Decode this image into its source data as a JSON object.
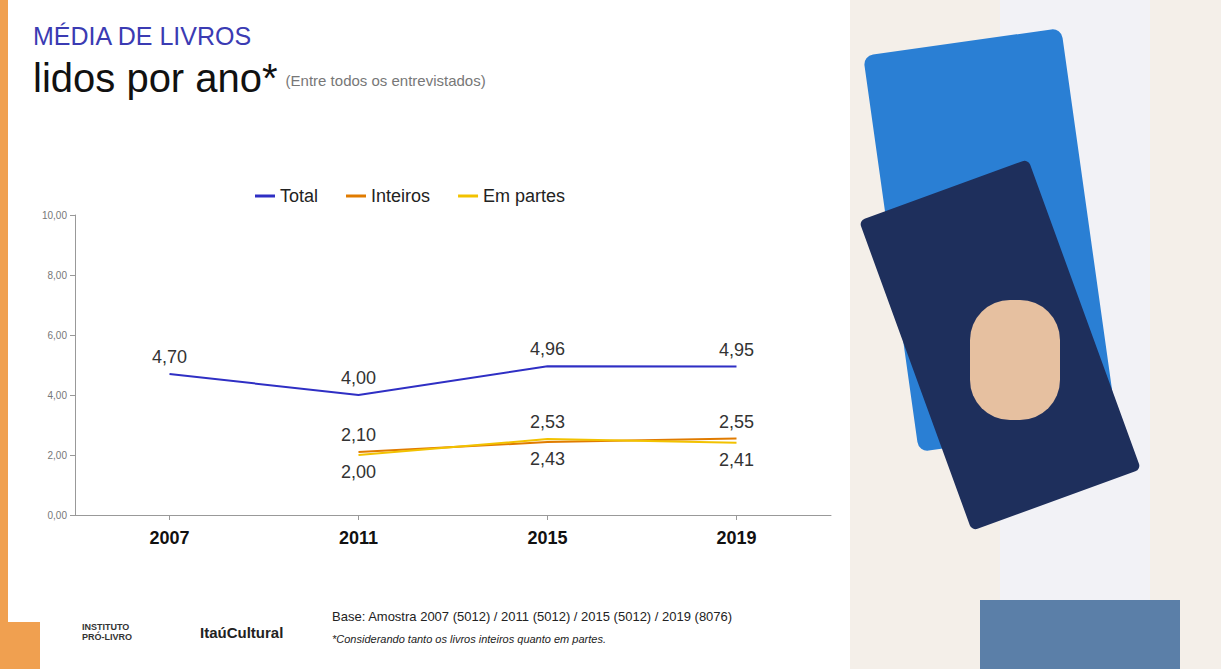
{
  "chart_data": {
    "type": "line",
    "title": "MÉDIA DE LIVROS",
    "subtitle": "lidos por ano*",
    "subtitle_note": "(Entre todos os entrevistados)",
    "categories": [
      "2007",
      "2011",
      "2015",
      "2019"
    ],
    "series": [
      {
        "name": "Total",
        "color": "#2f2fc4",
        "values": [
          4.7,
          4.0,
          4.96,
          4.95
        ],
        "value_labels": [
          "4,70",
          "4,00",
          "4,96",
          "4,95"
        ]
      },
      {
        "name": "Inteiros",
        "color": "#e07b00",
        "values": [
          null,
          2.1,
          2.43,
          2.55
        ],
        "value_labels": [
          null,
          "2,10",
          "2,43",
          "2,55"
        ]
      },
      {
        "name": "Em partes",
        "color": "#f2c200",
        "values": [
          null,
          2.0,
          2.53,
          2.41
        ],
        "value_labels": [
          null,
          "2,00",
          "2,53",
          "2,41"
        ]
      }
    ],
    "ylim": [
      0,
      10
    ],
    "yticks": [
      {
        "value": 0,
        "label": "0,00"
      },
      {
        "value": 2,
        "label": "2,00"
      },
      {
        "value": 4,
        "label": "4,00"
      },
      {
        "value": 6,
        "label": "6,00"
      },
      {
        "value": 8,
        "label": "8,00"
      },
      {
        "value": 10,
        "label": "10,00"
      }
    ],
    "grid": false,
    "legend": "top",
    "data_labels": true,
    "notes": [
      "Base: Amostra 2007 (5012) / 2011 (5012) / 2015 (5012) / 2019 (8076)",
      "*Considerando tanto os livros inteiros quanto em partes."
    ],
    "logos": [
      "INSTITUTO",
      "PRÓ-LIVRO",
      "ItaúCultural"
    ]
  }
}
